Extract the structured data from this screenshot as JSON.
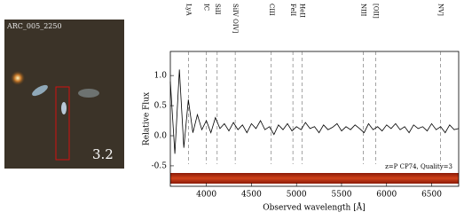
{
  "image": {
    "name": "ARC_005_2250",
    "redshift": "3.2"
  },
  "chart_data": {
    "type": "line",
    "ylabel": "Relative Flux",
    "xlabel": "Observed wavelength [Å]",
    "annotation": "z=P CP74, Quality=3",
    "x": [
      3600,
      3650,
      3700,
      3750,
      3800,
      3850,
      3900,
      3950,
      4000,
      4050,
      4100,
      4150,
      4200,
      4250,
      4300,
      4350,
      4400,
      4450,
      4500,
      4550,
      4600,
      4650,
      4700,
      4750,
      4800,
      4850,
      4900,
      4950,
      5000,
      5050,
      5100,
      5150,
      5200,
      5250,
      5300,
      5350,
      5400,
      5450,
      5500,
      5550,
      5600,
      5650,
      5700,
      5750,
      5800,
      5850,
      5900,
      5950,
      6000,
      6050,
      6100,
      6150,
      6200,
      6250,
      6300,
      6350,
      6400,
      6450,
      6500,
      6550,
      6600,
      6650,
      6700,
      6750,
      6800
    ],
    "values": [
      0.9,
      -0.3,
      1.1,
      -0.2,
      0.6,
      0.05,
      0.35,
      0.1,
      0.25,
      0.05,
      0.3,
      0.12,
      0.2,
      0.08,
      0.22,
      0.1,
      0.18,
      0.05,
      0.2,
      0.12,
      0.25,
      0.1,
      0.15,
      0.02,
      0.18,
      0.1,
      0.2,
      0.08,
      0.15,
      0.1,
      0.22,
      0.12,
      0.15,
      0.05,
      0.18,
      0.1,
      0.14,
      0.2,
      0.08,
      0.15,
      0.1,
      0.18,
      0.12,
      0.05,
      0.2,
      0.1,
      0.15,
      0.08,
      0.18,
      0.12,
      0.2,
      0.1,
      0.15,
      0.05,
      0.18,
      0.12,
      0.15,
      0.08,
      0.2,
      0.1,
      0.15,
      0.05,
      0.18,
      0.1,
      0.12
    ],
    "color": "#000000",
    "xlim": [
      3600,
      6800
    ],
    "ylim": [
      -0.84,
      1.4
    ],
    "xticks": [
      4000,
      4500,
      5000,
      5500,
      6000,
      6500
    ],
    "yticks": [
      -0.5,
      {
        "value": 0,
        "label": "0.0"
      },
      0.5,
      {
        "value": 1,
        "label": "1.0"
      }
    ],
    "line_marks": [
      {
        "x": 3800,
        "label": "LyA"
      },
      {
        "x": 4000,
        "label": "IC"
      },
      {
        "x": 4120,
        "label": "SiII"
      },
      {
        "x": 4320,
        "label": "SiIV OIV]"
      },
      {
        "x": 4720,
        "label": "CIII"
      },
      {
        "x": 4960,
        "label": "FeII"
      },
      {
        "x": 5060,
        "label": "HeII"
      },
      {
        "x": 5740,
        "label": "NIII"
      },
      {
        "x": 5880,
        "label": "[OII]"
      },
      {
        "x": 6600,
        "label": "NV]"
      }
    ]
  }
}
